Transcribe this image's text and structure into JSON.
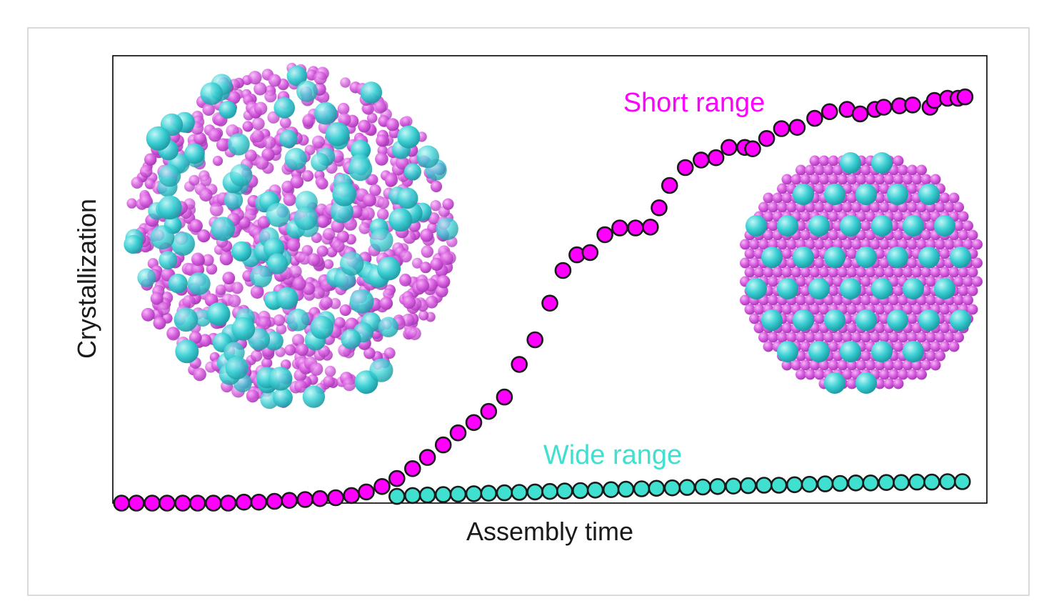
{
  "chart_data": {
    "type": "scatter",
    "xlabel": "Assembly time",
    "ylabel": "Crystallization",
    "xlim": [
      0,
      1
    ],
    "ylim": [
      0,
      1
    ],
    "grid": false,
    "tick_labels": "none",
    "series": [
      {
        "name": "Short range",
        "color": "#ff00ff",
        "x": [
          0.01,
          0.027,
          0.045,
          0.062,
          0.08,
          0.097,
          0.115,
          0.132,
          0.15,
          0.167,
          0.185,
          0.202,
          0.22,
          0.237,
          0.255,
          0.273,
          0.29,
          0.308,
          0.325,
          0.343,
          0.36,
          0.378,
          0.395,
          0.413,
          0.43,
          0.448,
          0.465,
          0.483,
          0.5,
          0.515,
          0.531,
          0.546,
          0.563,
          0.58,
          0.598,
          0.615,
          0.625,
          0.637,
          0.655,
          0.673,
          0.69,
          0.705,
          0.723,
          0.732,
          0.748,
          0.765,
          0.783,
          0.803,
          0.82,
          0.84,
          0.855,
          0.872,
          0.882,
          0.9,
          0.915,
          0.935,
          0.94,
          0.955,
          0.967,
          0.975
        ],
        "y": [
          0.0,
          0.0,
          0.0,
          0.0,
          0.0,
          0.0,
          0.0,
          0.0,
          0.002,
          0.002,
          0.004,
          0.006,
          0.008,
          0.01,
          0.012,
          0.017,
          0.025,
          0.037,
          0.055,
          0.077,
          0.102,
          0.13,
          0.157,
          0.18,
          0.205,
          0.237,
          0.31,
          0.365,
          0.447,
          0.52,
          0.555,
          0.56,
          0.6,
          0.615,
          0.615,
          0.617,
          0.66,
          0.71,
          0.75,
          0.767,
          0.772,
          0.795,
          0.795,
          0.792,
          0.815,
          0.837,
          0.84,
          0.86,
          0.875,
          0.88,
          0.87,
          0.88,
          0.885,
          0.888,
          0.89,
          0.885,
          0.9,
          0.905,
          0.905,
          0.908
        ],
        "y_note": "values normalized to the plot frame height"
      },
      {
        "name": "Wide range",
        "color": "#40e0d0",
        "x": [
          0.325,
          0.343,
          0.36,
          0.378,
          0.395,
          0.413,
          0.43,
          0.448,
          0.465,
          0.483,
          0.5,
          0.517,
          0.535,
          0.552,
          0.57,
          0.587,
          0.605,
          0.622,
          0.64,
          0.657,
          0.675,
          0.692,
          0.71,
          0.727,
          0.745,
          0.762,
          0.78,
          0.797,
          0.815,
          0.832,
          0.85,
          0.867,
          0.885,
          0.902,
          0.92,
          0.937,
          0.955,
          0.972
        ],
        "y": [
          0.015,
          0.017,
          0.018,
          0.019,
          0.02,
          0.021,
          0.022,
          0.023,
          0.024,
          0.025,
          0.026,
          0.027,
          0.028,
          0.029,
          0.03,
          0.031,
          0.032,
          0.033,
          0.034,
          0.035,
          0.036,
          0.037,
          0.038,
          0.039,
          0.04,
          0.04,
          0.041,
          0.042,
          0.043,
          0.044,
          0.045,
          0.045,
          0.046,
          0.046,
          0.047,
          0.047,
          0.048,
          0.048
        ]
      }
    ],
    "annotations": [
      {
        "text": "Short range",
        "color": "#ff00ff"
      },
      {
        "text": "Wide range",
        "color": "#40e0d0"
      }
    ]
  },
  "labels": {
    "xlabel": "Assembly time",
    "ylabel": "Crystallization",
    "short_range": "Short range",
    "wide_range": "Wide range"
  },
  "colors": {
    "magenta": "#ff00ff",
    "cyan": "#40e0d0",
    "sphere_magenta": "#e05ce6",
    "sphere_cyan": "#3fd3d6"
  }
}
